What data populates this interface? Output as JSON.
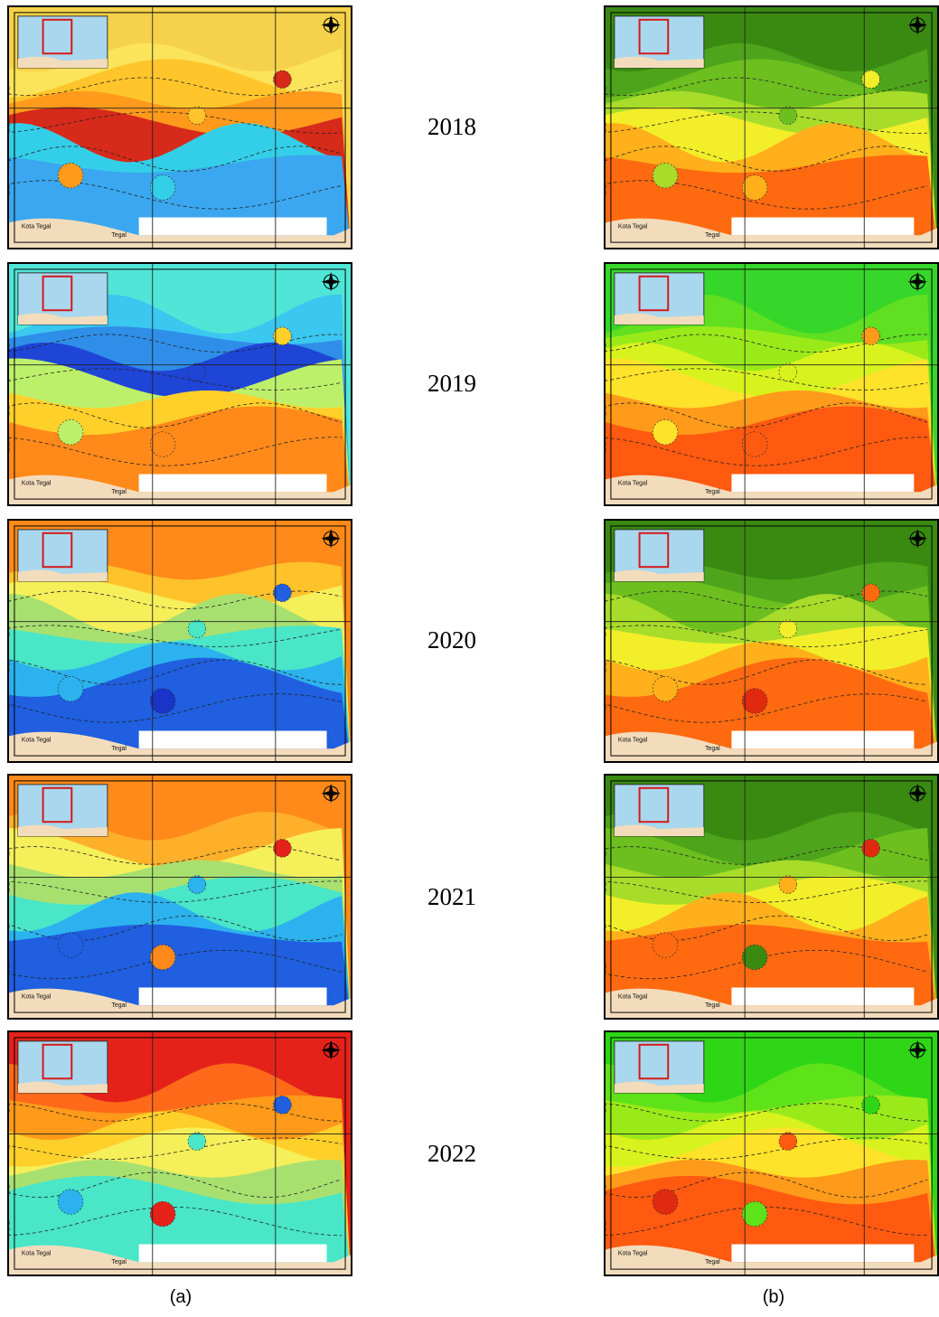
{
  "years": [
    "2018",
    "2019",
    "2020",
    "2021",
    "2022"
  ],
  "column_labels": {
    "a": "(a)",
    "b": "(b)"
  },
  "map_labels": {
    "city": "Kota Tegal",
    "town": "Tegal"
  },
  "icons": {
    "north_arrow": "compass-rose-icon"
  },
  "colors": {
    "a": {
      "2018": [
        "#f6d24a",
        "#fbe35a",
        "#ffc52a",
        "#ff9a1c",
        "#d62a1a",
        "#33cfe8",
        "#3aa7f0",
        "#2a6ee8",
        "#1a3ed8"
      ],
      "2019": [
        "#4fe6d8",
        "#3ac7f0",
        "#2f8ee8",
        "#1f45d6",
        "#bdf06a",
        "#ffd02a",
        "#ff8a1a",
        "#e02a16"
      ],
      "2020": [
        "#ff8a1a",
        "#ffc22a",
        "#f5ef5a",
        "#a8e070",
        "#49e6c8",
        "#2cb2ee",
        "#1f5fe0",
        "#1a34c8",
        "#e4221a"
      ],
      "2021": [
        "#ff8a1a",
        "#ffb02a",
        "#f5ef5a",
        "#a8e070",
        "#49e6c8",
        "#2cb2ee",
        "#1f5fe0",
        "#e4221a"
      ],
      "2022": [
        "#e4221a",
        "#ff6a1a",
        "#ff9a1a",
        "#ffd02a",
        "#f5ef5a",
        "#a8e070",
        "#49e6c8",
        "#2cb2ee",
        "#1f5fe0"
      ]
    },
    "b": {
      "2018": [
        "#3a8a12",
        "#4ea41a",
        "#6cbf1e",
        "#a8dc2a",
        "#f2ee2a",
        "#ffb01a",
        "#ff6a10",
        "#e02a10"
      ],
      "2019": [
        "#36d62a",
        "#60e020",
        "#9aea1a",
        "#d8f21e",
        "#ffe22a",
        "#ff9a1a",
        "#ff5a10",
        "#e02a10"
      ],
      "2020": [
        "#3a8a12",
        "#4ea41a",
        "#6cbf1e",
        "#a8dc2a",
        "#f2ee2a",
        "#ffb01a",
        "#ff6a10",
        "#e02a10"
      ],
      "2021": [
        "#3a8a12",
        "#4ea41a",
        "#6cbf1e",
        "#a8dc2a",
        "#f2ee2a",
        "#ffb01a",
        "#ff6a10",
        "#e02a10"
      ],
      "2022": [
        "#2fd616",
        "#5ee21a",
        "#9aea1a",
        "#d8f21e",
        "#ffe22a",
        "#ff9a1a",
        "#ff5a10",
        "#e02a10"
      ]
    }
  }
}
